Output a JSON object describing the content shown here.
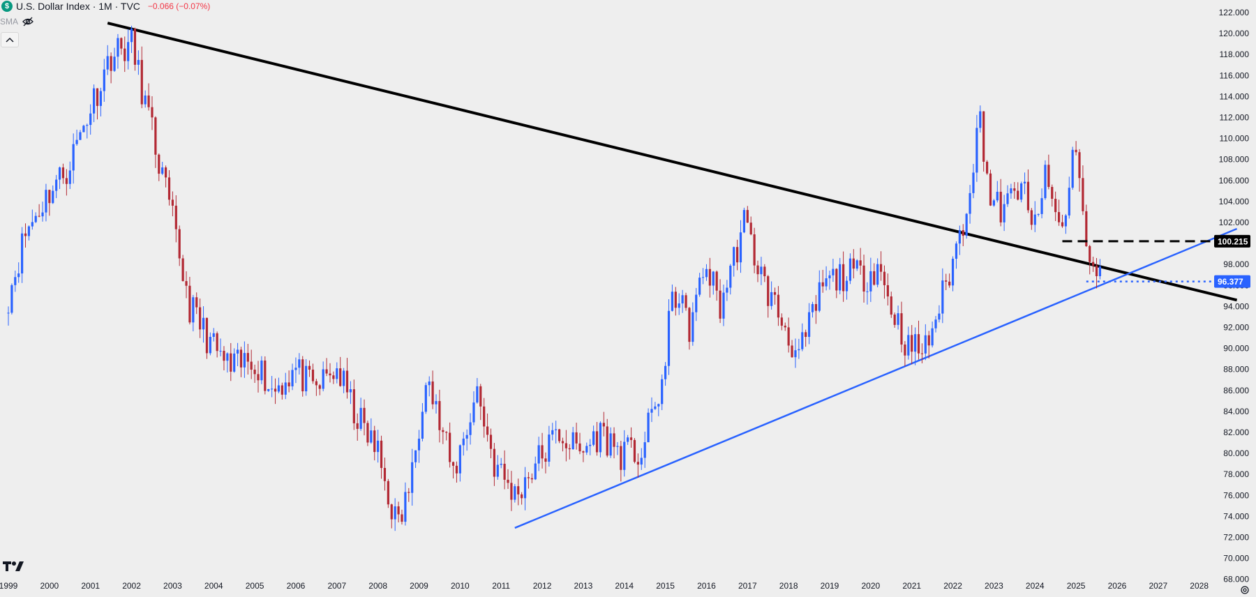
{
  "header": {
    "title": "U.S. Dollar Index · 1M · TVC",
    "change": "−0.066 (−0.07%)",
    "symbol_logo_text": "$",
    "sma_label": "SMA"
  },
  "icons": {
    "eye_hidden": "eye-off-icon",
    "collapse": "chevron-up-icon",
    "logo": "tradingview-logo-icon",
    "settings": "gear-icon"
  },
  "colors": {
    "background": "#eeeeee",
    "up_candle": "#2962ff",
    "down_candle": "#b22833",
    "trendline_black": "#000000",
    "trendline_blue": "#2962ff",
    "axis_text": "#131722"
  },
  "chart_data": {
    "type": "candlestick",
    "xlabel": "",
    "ylabel": "",
    "x_tick_labels": [
      "1999",
      "2000",
      "2001",
      "2002",
      "2003",
      "2004",
      "2005",
      "2006",
      "2007",
      "2008",
      "2009",
      "2010",
      "2011",
      "2012",
      "2013",
      "2014",
      "2015",
      "2016",
      "2017",
      "2018",
      "2019",
      "2020",
      "2021",
      "2022",
      "2023",
      "2024",
      "2025",
      "2026",
      "2027",
      "2028"
    ],
    "y_tick_labels": [
      "68.000",
      "70.000",
      "72.000",
      "74.000",
      "76.000",
      "78.000",
      "80.000",
      "82.000",
      "84.000",
      "86.000",
      "88.000",
      "90.000",
      "92.000",
      "94.000",
      "96.000",
      "98.000",
      "102.000",
      "104.000",
      "106.000",
      "108.000",
      "110.000",
      "112.000",
      "114.000",
      "116.000",
      "118.000",
      "120.000",
      "122.000"
    ],
    "y_range": [
      68,
      123
    ],
    "x_range": [
      "1999-01",
      "2028-12"
    ],
    "grid": false,
    "series": [
      {
        "interval": "monthly",
        "x": [
          "1999-01",
          "1999-06",
          "2000-01",
          "2000-06",
          "2001-01",
          "2001-07",
          "2002-01",
          "2002-06",
          "2003-01",
          "2003-06",
          "2004-01",
          "2004-06",
          "2005-01",
          "2005-06",
          "2006-01",
          "2006-06",
          "2007-01",
          "2007-06",
          "2008-01",
          "2008-04",
          "2008-07",
          "2008-11",
          "2009-03",
          "2009-06",
          "2009-11",
          "2010-06",
          "2010-11",
          "2011-05",
          "2011-11",
          "2012-06",
          "2012-12",
          "2013-06",
          "2013-12",
          "2014-06",
          "2015-01",
          "2015-03",
          "2015-08",
          "2016-01",
          "2016-05",
          "2016-12",
          "2017-06",
          "2017-12",
          "2018-04",
          "2018-11",
          "2019-05",
          "2019-12",
          "2020-03",
          "2020-07",
          "2020-12",
          "2021-05",
          "2021-11",
          "2022-04",
          "2022-09",
          "2022-12",
          "2023-04",
          "2023-09",
          "2023-12",
          "2024-04",
          "2024-09",
          "2024-12",
          "2025-01",
          "2025-04",
          "2025-06",
          "2025-08"
        ],
        "close": [
          95,
          101,
          105,
          107,
          113,
          118,
          119,
          112,
          102,
          94,
          90,
          88,
          89,
          86,
          88,
          86,
          88,
          84,
          80,
          76,
          73,
          78,
          88,
          84,
          78,
          86,
          79,
          76,
          79,
          82,
          80,
          82,
          80,
          80,
          88,
          96,
          92,
          98,
          94,
          102,
          96,
          92,
          89,
          96,
          97,
          97,
          98,
          94,
          90,
          90,
          96,
          102,
          112,
          104,
          103,
          106,
          101,
          106,
          101,
          108,
          110,
          99,
          97,
          97.8
        ]
      }
    ],
    "annotations": [
      {
        "type": "trendline",
        "color": "black",
        "from": [
          "2001-06",
          121
        ],
        "to": [
          "2028-12",
          94.6
        ]
      },
      {
        "type": "trendline",
        "color": "blue",
        "from": [
          "2011-05",
          72.9
        ],
        "to": [
          "2028-12",
          101.4
        ]
      },
      {
        "type": "horizontal-line",
        "style": "dashed",
        "color": "black",
        "from": "2024-09",
        "value": 100.215,
        "label": "100.215"
      },
      {
        "type": "horizontal-line",
        "style": "dotted",
        "color": "blue",
        "from": "2025-04",
        "value": 96.377,
        "label": "96.377"
      }
    ]
  }
}
